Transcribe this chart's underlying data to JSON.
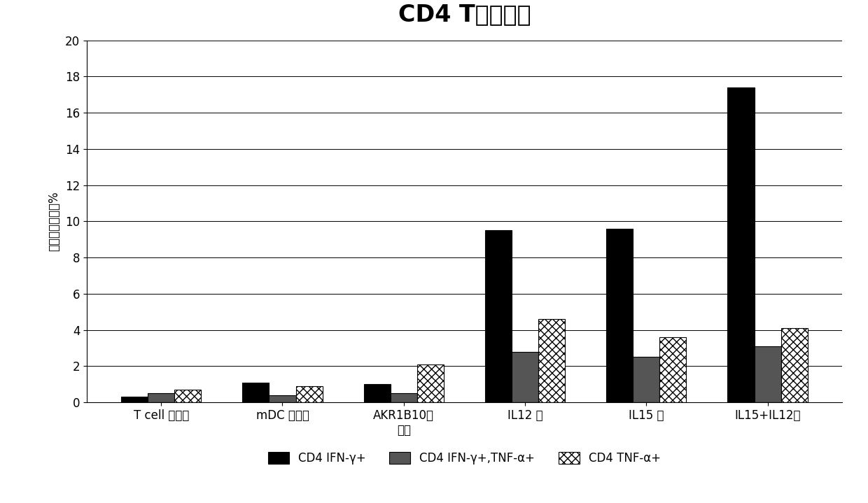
{
  "title": "CD4 T细胞应答",
  "ylabel": "阳性细胞比例，%",
  "categories": [
    "T cell 对照组",
    "mDC 对照组",
    "AKR1B10对\n照组",
    "IL12 组",
    "IL15 组",
    "IL15+IL12组"
  ],
  "series": {
    "CD4 IFN-γ+": [
      0.3,
      1.1,
      1.0,
      9.5,
      9.6,
      17.4
    ],
    "CD4 IFN-γ+,TNF-α+": [
      0.5,
      0.4,
      0.5,
      2.8,
      2.5,
      3.1
    ],
    "CD4 TNF-α+": [
      0.7,
      0.9,
      2.1,
      4.6,
      3.6,
      4.1
    ]
  },
  "colors": {
    "CD4 IFN-γ+": "#000000",
    "CD4 IFN-γ+,TNF-α+": "#555555",
    "CD4 TNF-α+": "#ffffff"
  },
  "ylim": [
    0,
    20
  ],
  "yticks": [
    0,
    2,
    4,
    6,
    8,
    10,
    12,
    14,
    16,
    18,
    20
  ],
  "bar_width": 0.22,
  "title_fontsize": 24,
  "axis_fontsize": 12,
  "tick_fontsize": 12,
  "legend_fontsize": 12,
  "background_color": "#ffffff"
}
